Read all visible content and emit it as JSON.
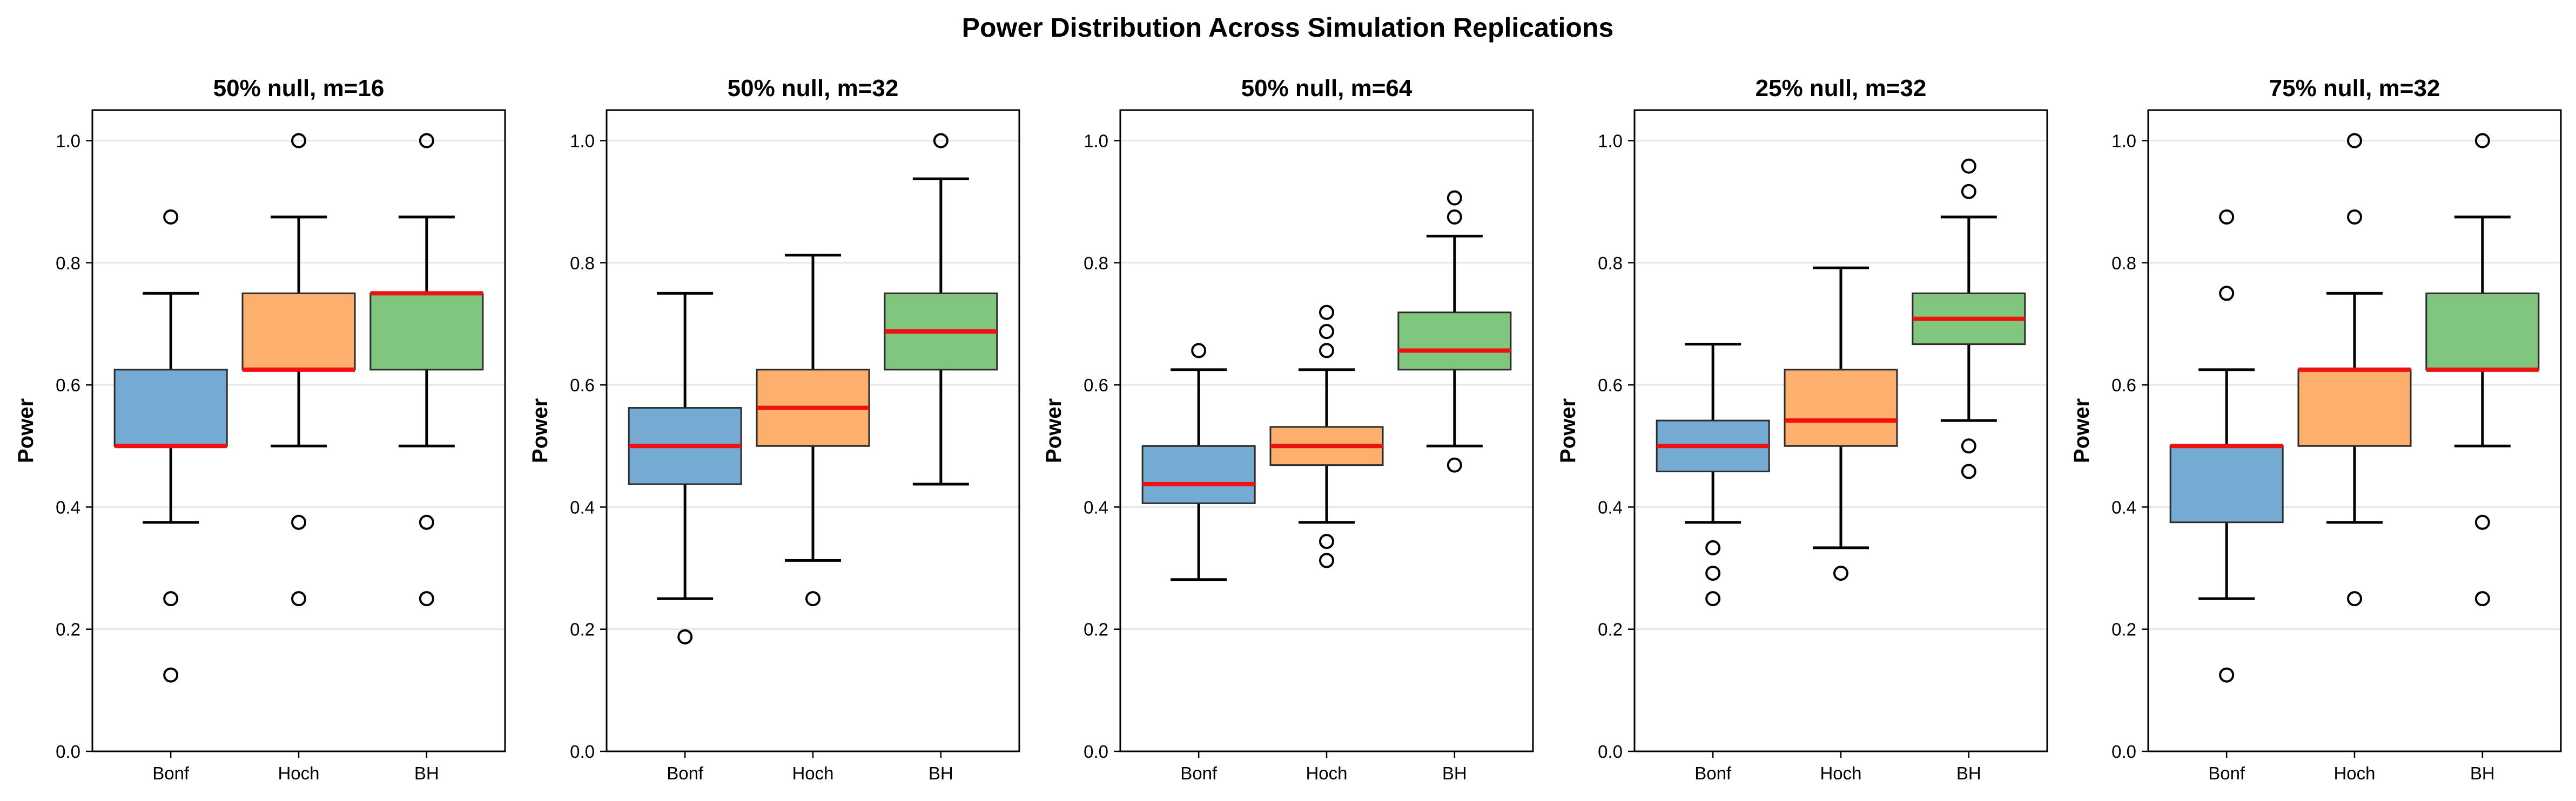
{
  "figure_title": "Power Distribution Across Simulation Replications",
  "chart_data": [
    {
      "type": "box",
      "title": "50% null, m=16",
      "ylabel": "Power",
      "ylim": [
        0,
        1.05
      ],
      "yticks": [
        "0.0",
        "0.2",
        "0.4",
        "0.6",
        "0.8",
        "1.0"
      ],
      "grid": "y",
      "categories": [
        "Bonf",
        "Hoch",
        "BH"
      ],
      "boxes": [
        {
          "q1": 0.5,
          "median": 0.5,
          "q3": 0.625,
          "whisker_low": 0.375,
          "whisker_high": 0.75,
          "outliers": [
            0.875,
            0.25,
            0.125
          ]
        },
        {
          "q1": 0.625,
          "median": 0.625,
          "q3": 0.75,
          "whisker_low": 0.5,
          "whisker_high": 0.875,
          "outliers": [
            1.0,
            0.375,
            0.25
          ]
        },
        {
          "q1": 0.625,
          "median": 0.75,
          "q3": 0.75,
          "whisker_low": 0.5,
          "whisker_high": 0.875,
          "outliers": [
            1.0,
            0.375,
            0.25
          ]
        }
      ]
    },
    {
      "type": "box",
      "title": "50% null, m=32",
      "ylabel": "Power",
      "ylim": [
        0,
        1.05
      ],
      "yticks": [
        "0.0",
        "0.2",
        "0.4",
        "0.6",
        "0.8",
        "1.0"
      ],
      "grid": "y",
      "categories": [
        "Bonf",
        "Hoch",
        "BH"
      ],
      "boxes": [
        {
          "q1": 0.4375,
          "median": 0.5,
          "q3": 0.5625,
          "whisker_low": 0.25,
          "whisker_high": 0.75,
          "outliers": [
            0.1875
          ]
        },
        {
          "q1": 0.5,
          "median": 0.5625,
          "q3": 0.625,
          "whisker_low": 0.3125,
          "whisker_high": 0.8125,
          "outliers": [
            0.25
          ]
        },
        {
          "q1": 0.625,
          "median": 0.6875,
          "q3": 0.75,
          "whisker_low": 0.4375,
          "whisker_high": 0.9375,
          "outliers": [
            1.0
          ]
        }
      ]
    },
    {
      "type": "box",
      "title": "50% null, m=64",
      "ylabel": "Power",
      "ylim": [
        0,
        1.05
      ],
      "yticks": [
        "0.0",
        "0.2",
        "0.4",
        "0.6",
        "0.8",
        "1.0"
      ],
      "grid": "y",
      "categories": [
        "Bonf",
        "Hoch",
        "BH"
      ],
      "boxes": [
        {
          "q1": 0.40625,
          "median": 0.4375,
          "q3": 0.5,
          "whisker_low": 0.28125,
          "whisker_high": 0.625,
          "outliers": [
            0.65625
          ]
        },
        {
          "q1": 0.46875,
          "median": 0.5,
          "q3": 0.53125,
          "whisker_low": 0.375,
          "whisker_high": 0.625,
          "outliers": [
            0.71875,
            0.6875,
            0.65625,
            0.34375,
            0.3125
          ]
        },
        {
          "q1": 0.625,
          "median": 0.65625,
          "q3": 0.71875,
          "whisker_low": 0.5,
          "whisker_high": 0.84375,
          "outliers": [
            0.90625,
            0.875,
            0.46875
          ]
        }
      ]
    },
    {
      "type": "box",
      "title": "25% null, m=32",
      "ylabel": "Power",
      "ylim": [
        0,
        1.05
      ],
      "yticks": [
        "0.0",
        "0.2",
        "0.4",
        "0.6",
        "0.8",
        "1.0"
      ],
      "grid": "y",
      "categories": [
        "Bonf",
        "Hoch",
        "BH"
      ],
      "boxes": [
        {
          "q1": 0.4583,
          "median": 0.5,
          "q3": 0.5417,
          "whisker_low": 0.375,
          "whisker_high": 0.6667,
          "outliers": [
            0.3333,
            0.2917,
            0.25
          ]
        },
        {
          "q1": 0.5,
          "median": 0.5417,
          "q3": 0.625,
          "whisker_low": 0.3333,
          "whisker_high": 0.7917,
          "outliers": [
            0.2917
          ]
        },
        {
          "q1": 0.6667,
          "median": 0.7083,
          "q3": 0.75,
          "whisker_low": 0.5417,
          "whisker_high": 0.875,
          "outliers": [
            0.9583,
            0.9167,
            0.5,
            0.4583
          ]
        }
      ]
    },
    {
      "type": "box",
      "title": "75% null, m=32",
      "ylabel": "Power",
      "ylim": [
        0,
        1.05
      ],
      "yticks": [
        "0.0",
        "0.2",
        "0.4",
        "0.6",
        "0.8",
        "1.0"
      ],
      "grid": "y",
      "categories": [
        "Bonf",
        "Hoch",
        "BH"
      ],
      "boxes": [
        {
          "q1": 0.375,
          "median": 0.5,
          "q3": 0.5,
          "whisker_low": 0.25,
          "whisker_high": 0.625,
          "outliers": [
            0.875,
            0.75,
            0.125
          ]
        },
        {
          "q1": 0.5,
          "median": 0.625,
          "q3": 0.625,
          "whisker_low": 0.375,
          "whisker_high": 0.75,
          "outliers": [
            1.0,
            0.875,
            0.25
          ]
        },
        {
          "q1": 0.625,
          "median": 0.625,
          "q3": 0.75,
          "whisker_low": 0.5,
          "whisker_high": 0.875,
          "outliers": [
            1.0,
            0.375,
            0.25
          ]
        }
      ]
    }
  ],
  "colors": {
    "box_fills": [
      "#75aad2",
      "#fdb06e",
      "#80c67f"
    ],
    "box_edge": "#2b2b2b",
    "median_line": "#ee1111",
    "whisker": "#000000",
    "grid": "#e6e6e6"
  }
}
